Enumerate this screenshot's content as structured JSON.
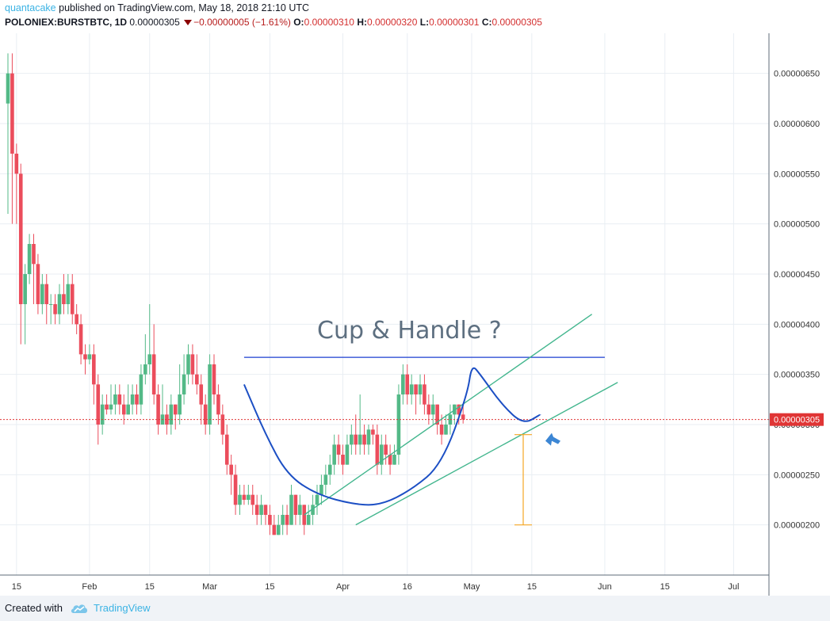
{
  "header": {
    "author": "quantacake",
    "published_text": " published on TradingView.com, May 18, 2018 21:10 UTC",
    "symbol": "POLONIEX:BURSTBTC, 1D",
    "price": "0.00000305",
    "change": "−0.00000005 (−1.61%)",
    "o_label": "O:",
    "o_value": "0.00000310",
    "h_label": "H:",
    "h_value": "0.00000320",
    "l_label": "L:",
    "l_value": "0.00000301",
    "c_label": "C:",
    "c_value": "0.00000305"
  },
  "footer": {
    "created_with": "Created with",
    "brand": "TradingView"
  },
  "colors": {
    "up": "#53b987",
    "down": "#eb4d5c",
    "grid": "#e9eef3",
    "channel": "#43b68e",
    "cup_curve": "#1c4fc4",
    "resistance": "#1c3fd1",
    "measure": "#f5a623",
    "arrow": "#3c86d4",
    "price_line": "#e03535",
    "annotation_text": "#5d6f80"
  },
  "chart_data": {
    "type": "candlestick",
    "title": "",
    "y_range": [
      1.75e-06,
      6.9e-06
    ],
    "y_ticks": [
      "0.00000650",
      "0.00000600",
      "0.00000550",
      "0.00000500",
      "0.00000450",
      "0.00000400",
      "0.00000350",
      "0.00000300",
      "0.00000250",
      "0.00000200"
    ],
    "y_tick_values": [
      6.5e-06,
      6e-06,
      5.5e-06,
      5e-06,
      4.5e-06,
      4e-06,
      3.5e-06,
      3e-06,
      2.5e-06,
      2e-06
    ],
    "x_axis_start_date": "2018-01-13",
    "x_ticks": [
      {
        "label": "15",
        "date": "2018-01-15"
      },
      {
        "label": "Feb",
        "date": "2018-02-01"
      },
      {
        "label": "15",
        "date": "2018-02-15"
      },
      {
        "label": "Mar",
        "date": "2018-03-01"
      },
      {
        "label": "15",
        "date": "2018-03-15"
      },
      {
        "label": "Apr",
        "date": "2018-04-01"
      },
      {
        "label": "16",
        "date": "2018-04-16"
      },
      {
        "label": "May",
        "date": "2018-05-01"
      },
      {
        "label": "15",
        "date": "2018-05-15"
      },
      {
        "label": "Jun",
        "date": "2018-06-01"
      },
      {
        "label": "15",
        "date": "2018-06-15"
      },
      {
        "label": "Jul",
        "date": "2018-07-01"
      }
    ],
    "current_price": 3.05e-06,
    "current_price_label": "0.00000305",
    "annotation": "Cup & Handle ?",
    "candles": [
      [
        6.2e-06,
        6.5e-06,
        6.7e-06,
        5.1e-06
      ],
      [
        6.5e-06,
        5.7e-06,
        6.7e-06,
        5e-06
      ],
      [
        5.7e-06,
        5.5e-06,
        5.8e-06,
        5e-06
      ],
      [
        5.5e-06,
        4.2e-06,
        5.6e-06,
        3.8e-06
      ],
      [
        4.2e-06,
        4.5e-06,
        4.6e-06,
        3.8e-06
      ],
      [
        4.5e-06,
        4.8e-06,
        4.9e-06,
        4.4e-06
      ],
      [
        4.8e-06,
        4.6e-06,
        4.9e-06,
        4.2e-06
      ],
      [
        4.6e-06,
        4.2e-06,
        4.7e-06,
        4.1e-06
      ],
      [
        4.2e-06,
        4.4e-06,
        4.5e-06,
        4.1e-06
      ],
      [
        4.4e-06,
        4.2e-06,
        4.5e-06,
        4e-06
      ],
      [
        4.2e-06,
        4.2e-06,
        4.3e-06,
        4e-06
      ],
      [
        4.2e-06,
        4.1e-06,
        4.3e-06,
        4e-06
      ],
      [
        4.1e-06,
        4.3e-06,
        4.4e-06,
        4e-06
      ],
      [
        4.3e-06,
        4.2e-06,
        4.5e-06,
        4.1e-06
      ],
      [
        4.2e-06,
        4.4e-06,
        4.5e-06,
        4.1e-06
      ],
      [
        4.4e-06,
        4.1e-06,
        4.5e-06,
        4e-06
      ],
      [
        4.1e-06,
        4e-06,
        4.2e-06,
        3.9e-06
      ],
      [
        4e-06,
        3.7e-06,
        4.1e-06,
        3.6e-06
      ],
      [
        3.7e-06,
        3.65e-06,
        3.8e-06,
        3.5e-06
      ],
      [
        3.65e-06,
        3.7e-06,
        3.8e-06,
        3.6e-06
      ],
      [
        3.7e-06,
        3.4e-06,
        3.8e-06,
        3.2e-06
      ],
      [
        3.4e-06,
        3e-06,
        3.5e-06,
        2.8e-06
      ],
      [
        3e-06,
        3.2e-06,
        3.3e-06,
        2.9e-06
      ],
      [
        3.2e-06,
        3.15e-06,
        3.3e-06,
        3.1e-06
      ],
      [
        3.15e-06,
        3.2e-06,
        3.4e-06,
        3.1e-06
      ],
      [
        3.2e-06,
        3.3e-06,
        3.4e-06,
        3.1e-06
      ],
      [
        3.3e-06,
        3.2e-06,
        3.4e-06,
        3.1e-06
      ],
      [
        3.2e-06,
        3.1e-06,
        3.3e-06,
        3e-06
      ],
      [
        3.1e-06,
        3.2e-06,
        3.4e-06,
        3.1e-06
      ],
      [
        3.2e-06,
        3.3e-06,
        3.4e-06,
        3.1e-06
      ],
      [
        3.3e-06,
        3.2e-06,
        3.4e-06,
        3.1e-06
      ],
      [
        3.2e-06,
        3.5e-06,
        3.6e-06,
        3.1e-06
      ],
      [
        3.5e-06,
        3.6e-06,
        3.9e-06,
        3.4e-06
      ],
      [
        3.6e-06,
        3.7e-06,
        4.2e-06,
        3.5e-06
      ],
      [
        3.7e-06,
        3.3e-06,
        4e-06,
        3.2e-06
      ],
      [
        3.3e-06,
        3e-06,
        3.4e-06,
        2.9e-06
      ],
      [
        3e-06,
        3.1e-06,
        3.4e-06,
        3e-06
      ],
      [
        3.1e-06,
        3e-06,
        3.2e-06,
        2.9e-06
      ],
      [
        3e-06,
        3.2e-06,
        3.3e-06,
        2.9e-06
      ],
      [
        3.2e-06,
        3.1e-06,
        3.2e-06,
        2.95e-06
      ],
      [
        3.1e-06,
        3.3e-06,
        3.6e-06,
        3e-06
      ],
      [
        3.3e-06,
        3.5e-06,
        3.7e-06,
        3.2e-06
      ],
      [
        3.5e-06,
        3.7e-06,
        3.8e-06,
        3.4e-06
      ],
      [
        3.7e-06,
        3.5e-06,
        3.8e-06,
        3.4e-06
      ],
      [
        3.5e-06,
        3.4e-06,
        3.7e-06,
        3.3e-06
      ],
      [
        3.4e-06,
        3.2e-06,
        3.5e-06,
        3e-06
      ],
      [
        3.2e-06,
        3e-06,
        3.3e-06,
        2.9e-06
      ],
      [
        3e-06,
        3.6e-06,
        3.7e-06,
        2.9e-06
      ],
      [
        3.6e-06,
        3.3e-06,
        3.7e-06,
        3.2e-06
      ],
      [
        3.3e-06,
        3.1e-06,
        3.4e-06,
        3e-06
      ],
      [
        3.1e-06,
        2.9e-06,
        3.2e-06,
        2.8e-06
      ],
      [
        2.9e-06,
        2.6e-06,
        3e-06,
        2.5e-06
      ],
      [
        2.6e-06,
        2.5e-06,
        2.7e-06,
        2.3e-06
      ],
      [
        2.5e-06,
        2.2e-06,
        2.6e-06,
        2.1e-06
      ],
      [
        2.2e-06,
        2.3e-06,
        2.4e-06,
        2.1e-06
      ],
      [
        2.3e-06,
        2.25e-06,
        2.4e-06,
        2.2e-06
      ],
      [
        2.25e-06,
        2.3e-06,
        2.4e-06,
        2.2e-06
      ],
      [
        2.3e-06,
        2.2e-06,
        2.4e-06,
        2.1e-06
      ],
      [
        2.2e-06,
        2.1e-06,
        2.3e-06,
        2e-06
      ],
      [
        2.1e-06,
        2.2e-06,
        2.3e-06,
        2e-06
      ],
      [
        2.2e-06,
        2.1e-06,
        2.2e-06,
        2e-06
      ],
      [
        2.1e-06,
        2e-06,
        2.2e-06,
        1.9e-06
      ],
      [
        2e-06,
        1.9e-06,
        2.1e-06,
        1.9e-06
      ],
      [
        1.9e-06,
        2e-06,
        2.1e-06,
        1.9e-06
      ],
      [
        2e-06,
        2.1e-06,
        2.2e-06,
        1.9e-06
      ],
      [
        2.1e-06,
        2e-06,
        2.2e-06,
        1.9e-06
      ],
      [
        2e-06,
        2.3e-06,
        2.4e-06,
        2e-06
      ],
      [
        2.3e-06,
        2.1e-06,
        2.3e-06,
        2e-06
      ],
      [
        2.1e-06,
        2.2e-06,
        2.3e-06,
        2e-06
      ],
      [
        2.2e-06,
        2e-06,
        2.2e-06,
        1.9e-06
      ],
      [
        2e-06,
        2.1e-06,
        2.2e-06,
        2e-06
      ],
      [
        2.1e-06,
        2.2e-06,
        2.3e-06,
        2e-06
      ],
      [
        2.2e-06,
        2.3e-06,
        2.4e-06,
        2.1e-06
      ],
      [
        2.3e-06,
        2.4e-06,
        2.5e-06,
        2.2e-06
      ],
      [
        2.4e-06,
        2.5e-06,
        2.6e-06,
        2.3e-06
      ],
      [
        2.5e-06,
        2.6e-06,
        2.7e-06,
        2.4e-06
      ],
      [
        2.6e-06,
        2.8e-06,
        2.9e-06,
        2.5e-06
      ],
      [
        2.8e-06,
        2.7e-06,
        2.9e-06,
        2.6e-06
      ],
      [
        2.7e-06,
        2.6e-06,
        2.8e-06,
        2.5e-06
      ],
      [
        2.6e-06,
        2.8e-06,
        2.9e-06,
        2.6e-06
      ],
      [
        2.8e-06,
        2.9e-06,
        3e-06,
        2.7e-06
      ],
      [
        2.9e-06,
        2.8e-06,
        3.1e-06,
        2.7e-06
      ],
      [
        2.8e-06,
        2.9e-06,
        3.3e-06,
        2.7e-06
      ],
      [
        2.9e-06,
        2.8e-06,
        3e-06,
        2.7e-06
      ],
      [
        2.8e-06,
        2.95e-06,
        3e-06,
        2.7e-06
      ],
      [
        2.95e-06,
        2.9e-06,
        3e-06,
        2.8e-06
      ],
      [
        2.9e-06,
        2.6e-06,
        3e-06,
        2.5e-06
      ],
      [
        2.6e-06,
        2.8e-06,
        2.9e-06,
        2.5e-06
      ],
      [
        2.8e-06,
        2.7e-06,
        2.9e-06,
        2.6e-06
      ],
      [
        2.7e-06,
        2.6e-06,
        2.8e-06,
        2.5e-06
      ],
      [
        2.6e-06,
        2.7e-06,
        2.8e-06,
        2.6e-06
      ],
      [
        2.7e-06,
        3.3e-06,
        3.4e-06,
        2.6e-06
      ],
      [
        3.3e-06,
        3.5e-06,
        3.6e-06,
        3.2e-06
      ],
      [
        3.5e-06,
        3.3e-06,
        3.6e-06,
        3.2e-06
      ],
      [
        3.3e-06,
        3.4e-06,
        3.5e-06,
        3.2e-06
      ],
      [
        3.4e-06,
        3.3e-06,
        3.4e-06,
        3.1e-06
      ],
      [
        3.3e-06,
        3.4e-06,
        3.5e-06,
        3.2e-06
      ],
      [
        3.4e-06,
        3.2e-06,
        3.5e-06,
        3.1e-06
      ],
      [
        3.2e-06,
        3.1e-06,
        3.3e-06,
        3e-06
      ],
      [
        3.1e-06,
        3.2e-06,
        3.3e-06,
        3e-06
      ],
      [
        3.2e-06,
        3e-06,
        3.2e-06,
        2.9e-06
      ],
      [
        3e-06,
        2.9e-06,
        3.1e-06,
        2.8e-06
      ],
      [
        2.9e-06,
        3e-06,
        3.1e-06,
        2.9e-06
      ],
      [
        3e-06,
        3.1e-06,
        3.2e-06,
        2.9e-06
      ],
      [
        3.1e-06,
        3.2e-06,
        3.2e-06,
        3e-06
      ],
      [
        3.2e-06,
        3.1e-06,
        3.2e-06,
        3e-06
      ],
      [
        3.1e-06,
        3.05e-06,
        3.2e-06,
        3.01e-06
      ]
    ],
    "drawings": {
      "resistance_line": {
        "date_start": "2018-03-09",
        "date_end": "2018-06-01",
        "price": 3.67e-06
      },
      "upper_channel": {
        "date_start": "2018-03-23",
        "price_start": 2.1e-06,
        "date_end": "2018-05-29",
        "price_end": 4.1e-06
      },
      "lower_channel": {
        "date_start": "2018-04-04",
        "price_start": 2e-06,
        "date_end": "2018-06-04",
        "price_end": 3.42e-06
      },
      "cup_curve": [
        [
          "2018-03-09",
          3.4e-06
        ],
        [
          "2018-03-14",
          2.9e-06
        ],
        [
          "2018-03-19",
          2.5e-06
        ],
        [
          "2018-03-26",
          2.3e-06
        ],
        [
          "2018-04-04",
          2.2e-06
        ],
        [
          "2018-04-10",
          2.2e-06
        ],
        [
          "2018-04-17",
          2.35e-06
        ],
        [
          "2018-04-24",
          2.6e-06
        ],
        [
          "2018-04-30",
          3.3e-06
        ],
        [
          "2018-05-01",
          3.6e-06
        ],
        [
          "2018-05-03",
          3.5e-06
        ],
        [
          "2018-05-08",
          3.2e-06
        ],
        [
          "2018-05-13",
          3e-06
        ],
        [
          "2018-05-17",
          3.1e-06
        ]
      ],
      "measure_bar": {
        "date": "2018-05-13",
        "price_top": 2.9e-06,
        "price_bottom": 2e-06
      },
      "arrow_pointing_at": {
        "date": "2018-05-13",
        "price": 2.9e-06
      }
    }
  }
}
